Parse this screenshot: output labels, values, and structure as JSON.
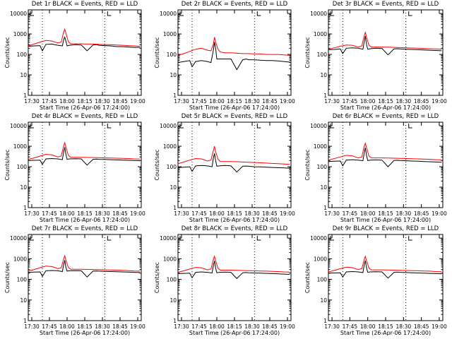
{
  "title_template": "BLACK = Events, RED = LLD",
  "xlabel": "Start Time (26-Apr-06 17:24:00)",
  "ylabel": "Counts/sec",
  "y_ticks": [
    "1",
    "10",
    "100",
    "1000",
    "10000"
  ],
  "x_tick_labels": [
    "17:30",
    "17:45",
    "18:00",
    "18:15",
    "18:30",
    "18:45",
    "19:00"
  ],
  "colors": {
    "events": "#000000",
    "lld": "#ff0000"
  },
  "chart_data": [
    {
      "type": "line",
      "title": "Det 1r",
      "series": [
        {
          "name": "Events",
          "x": [
            0,
            5,
            10,
            12,
            15,
            20,
            25,
            29,
            30,
            31,
            32,
            33,
            35,
            40,
            45,
            50,
            55,
            58,
            60,
            65,
            70,
            75,
            80,
            85,
            90,
            95
          ],
          "y": [
            250,
            260,
            270,
            150,
            310,
            320,
            280,
            260,
            500,
            700,
            450,
            260,
            280,
            300,
            290,
            150,
            290,
            300,
            280,
            270,
            260,
            240,
            240,
            230,
            220,
            220
          ]
        },
        {
          "name": "LLD",
          "x": [
            0,
            5,
            10,
            15,
            20,
            25,
            28,
            30,
            31,
            32,
            34,
            36,
            40,
            45,
            50,
            55,
            60,
            65,
            70,
            75,
            80,
            85,
            90,
            95
          ],
          "y": [
            260,
            320,
            400,
            480,
            450,
            360,
            400,
            1200,
            1700,
            1100,
            420,
            330,
            330,
            330,
            320,
            320,
            310,
            300,
            300,
            290,
            280,
            270,
            260,
            250
          ]
        }
      ],
      "xlim": [
        0,
        96
      ],
      "ylim": [
        1,
        15000
      ],
      "dotted_x": [
        12,
        65
      ],
      "marker_x": 65
    },
    {
      "type": "line",
      "title": "Det 2r",
      "series": [
        {
          "name": "Events",
          "x": [
            0,
            5,
            10,
            12,
            15,
            20,
            25,
            28,
            30,
            31,
            32,
            33,
            35,
            40,
            45,
            50,
            55,
            58,
            60,
            65,
            70,
            75,
            80,
            85,
            90,
            95
          ],
          "y": [
            40,
            45,
            50,
            25,
            45,
            50,
            45,
            40,
            150,
            400,
            200,
            60,
            60,
            60,
            60,
            18,
            55,
            60,
            55,
            55,
            52,
            50,
            50,
            48,
            45,
            42
          ]
        },
        {
          "name": "LLD",
          "x": [
            0,
            5,
            10,
            15,
            20,
            25,
            28,
            30,
            31,
            32,
            34,
            36,
            40,
            45,
            50,
            55,
            60,
            65,
            70,
            75,
            80,
            85,
            90,
            95
          ],
          "y": [
            90,
            110,
            140,
            180,
            200,
            160,
            150,
            300,
            700,
            400,
            180,
            130,
            120,
            120,
            115,
            110,
            110,
            105,
            105,
            100,
            100,
            100,
            95,
            90
          ]
        }
      ],
      "xlim": [
        0,
        96
      ],
      "ylim": [
        1,
        15000
      ],
      "dotted_x": [
        12,
        65
      ],
      "marker_x": 65
    },
    {
      "type": "line",
      "title": "Det 3r",
      "series": [
        {
          "name": "Events",
          "x": [
            0,
            5,
            10,
            12,
            15,
            20,
            25,
            29,
            30,
            31,
            32,
            33,
            35,
            40,
            45,
            50,
            55,
            58,
            60,
            65,
            70,
            75,
            80,
            85,
            90,
            95
          ],
          "y": [
            170,
            175,
            185,
            110,
            200,
            210,
            200,
            180,
            400,
            800,
            300,
            180,
            190,
            200,
            195,
            95,
            185,
            190,
            185,
            180,
            175,
            170,
            165,
            160,
            155,
            150
          ]
        },
        {
          "name": "LLD",
          "x": [
            0,
            5,
            10,
            15,
            20,
            25,
            28,
            30,
            31,
            32,
            34,
            36,
            40,
            45,
            50,
            55,
            60,
            65,
            70,
            75,
            80,
            85,
            90,
            95
          ],
          "y": [
            180,
            210,
            250,
            290,
            280,
            230,
            260,
            800,
            1200,
            700,
            280,
            230,
            230,
            230,
            225,
            220,
            215,
            210,
            205,
            200,
            195,
            190,
            185,
            180
          ]
        }
      ],
      "xlim": [
        0,
        96
      ],
      "ylim": [
        1,
        15000
      ],
      "dotted_x": [
        12,
        65
      ],
      "marker_x": 65
    },
    {
      "type": "line",
      "title": "Det 4r",
      "series": [
        {
          "name": "Events",
          "x": [
            0,
            5,
            10,
            12,
            15,
            20,
            25,
            29,
            30,
            31,
            32,
            33,
            35,
            40,
            45,
            50,
            55,
            58,
            60,
            65,
            70,
            75,
            80,
            85,
            90,
            95
          ],
          "y": [
            200,
            205,
            210,
            130,
            240,
            250,
            240,
            220,
            500,
            900,
            400,
            230,
            240,
            245,
            240,
            120,
            230,
            235,
            230,
            225,
            220,
            215,
            210,
            205,
            200,
            195
          ]
        },
        {
          "name": "LLD",
          "x": [
            0,
            5,
            10,
            15,
            20,
            25,
            28,
            30,
            31,
            32,
            34,
            36,
            40,
            45,
            50,
            55,
            60,
            65,
            70,
            75,
            80,
            85,
            90,
            95
          ],
          "y": [
            230,
            270,
            330,
            400,
            380,
            300,
            330,
            1000,
            1500,
            900,
            360,
            290,
            290,
            290,
            285,
            280,
            275,
            270,
            265,
            260,
            255,
            250,
            240,
            235
          ]
        }
      ],
      "xlim": [
        0,
        96
      ],
      "ylim": [
        1,
        15000
      ],
      "dotted_x": [
        12,
        65
      ],
      "marker_x": 65
    },
    {
      "type": "line",
      "title": "Det 5r",
      "series": [
        {
          "name": "Events",
          "x": [
            0,
            5,
            10,
            12,
            15,
            20,
            25,
            29,
            30,
            31,
            32,
            33,
            35,
            40,
            45,
            50,
            55,
            58,
            60,
            65,
            70,
            75,
            80,
            85,
            90,
            95
          ],
          "y": [
            90,
            95,
            100,
            60,
            110,
            115,
            110,
            100,
            250,
            450,
            200,
            105,
            110,
            115,
            110,
            55,
            105,
            108,
            105,
            100,
            98,
            95,
            92,
            90,
            88,
            85
          ]
        },
        {
          "name": "LLD",
          "x": [
            0,
            5,
            10,
            15,
            20,
            25,
            28,
            30,
            31,
            32,
            34,
            36,
            40,
            45,
            50,
            55,
            60,
            65,
            70,
            75,
            80,
            85,
            90,
            95
          ],
          "y": [
            140,
            170,
            210,
            250,
            240,
            190,
            210,
            600,
            1000,
            550,
            230,
            180,
            180,
            180,
            175,
            170,
            165,
            160,
            155,
            150,
            145,
            140,
            135,
            130
          ]
        }
      ],
      "xlim": [
        0,
        96
      ],
      "ylim": [
        1,
        15000
      ],
      "dotted_x": [
        12,
        65
      ],
      "marker_x": 65
    },
    {
      "type": "line",
      "title": "Det 6r",
      "series": [
        {
          "name": "Events",
          "x": [
            0,
            5,
            10,
            12,
            15,
            20,
            25,
            29,
            30,
            31,
            32,
            33,
            35,
            40,
            45,
            50,
            55,
            58,
            60,
            65,
            70,
            75,
            80,
            85,
            90,
            95
          ],
          "y": [
            180,
            185,
            190,
            110,
            210,
            220,
            210,
            195,
            450,
            850,
            350,
            200,
            210,
            215,
            210,
            100,
            200,
            205,
            200,
            195,
            190,
            185,
            180,
            175,
            170,
            165
          ]
        },
        {
          "name": "LLD",
          "x": [
            0,
            5,
            10,
            15,
            20,
            25,
            28,
            30,
            31,
            32,
            34,
            36,
            40,
            45,
            50,
            55,
            60,
            65,
            70,
            75,
            80,
            85,
            90,
            95
          ],
          "y": [
            210,
            250,
            300,
            360,
            340,
            270,
            300,
            950,
            1400,
            850,
            330,
            270,
            270,
            270,
            265,
            260,
            255,
            250,
            245,
            240,
            235,
            230,
            220,
            215
          ]
        }
      ],
      "xlim": [
        0,
        96
      ],
      "ylim": [
        1,
        15000
      ],
      "dotted_x": [
        12,
        65
      ],
      "marker_x": 65
    },
    {
      "type": "line",
      "title": "Det 7r",
      "series": [
        {
          "name": "Events",
          "x": [
            0,
            5,
            10,
            12,
            15,
            20,
            25,
            29,
            30,
            31,
            32,
            33,
            35,
            40,
            45,
            50,
            55,
            58,
            60,
            65,
            70,
            75,
            80,
            85,
            90,
            95
          ],
          "y": [
            220,
            225,
            230,
            140,
            260,
            270,
            260,
            240,
            500,
            850,
            380,
            250,
            260,
            265,
            260,
            130,
            250,
            255,
            250,
            245,
            240,
            235,
            230,
            225,
            220,
            215
          ]
        },
        {
          "name": "LLD",
          "x": [
            0,
            5,
            10,
            15,
            20,
            25,
            28,
            30,
            31,
            32,
            34,
            36,
            40,
            45,
            50,
            55,
            60,
            65,
            70,
            75,
            80,
            85,
            90,
            95
          ],
          "y": [
            250,
            300,
            370,
            440,
            420,
            330,
            360,
            950,
            1400,
            850,
            380,
            310,
            310,
            310,
            305,
            300,
            295,
            290,
            285,
            280,
            275,
            265,
            255,
            250
          ]
        }
      ],
      "xlim": [
        0,
        96
      ],
      "ylim": [
        1,
        15000
      ],
      "dotted_x": [
        12,
        65
      ],
      "marker_x": 65
    },
    {
      "type": "line",
      "title": "Det 8r",
      "series": [
        {
          "name": "Events",
          "x": [
            0,
            5,
            10,
            12,
            15,
            20,
            25,
            29,
            30,
            31,
            32,
            33,
            35,
            40,
            45,
            50,
            55,
            58,
            60,
            65,
            70,
            75,
            80,
            85,
            90,
            95
          ],
          "y": [
            190,
            195,
            200,
            120,
            220,
            230,
            220,
            205,
            450,
            800,
            350,
            210,
            220,
            225,
            220,
            110,
            210,
            215,
            210,
            205,
            200,
            195,
            190,
            185,
            180,
            175
          ]
        },
        {
          "name": "LLD",
          "x": [
            0,
            5,
            10,
            15,
            20,
            25,
            28,
            30,
            31,
            32,
            34,
            36,
            40,
            45,
            50,
            55,
            60,
            65,
            70,
            75,
            80,
            85,
            90,
            95
          ],
          "y": [
            220,
            260,
            320,
            380,
            360,
            290,
            320,
            900,
            1300,
            800,
            340,
            280,
            280,
            280,
            275,
            270,
            265,
            260,
            255,
            250,
            245,
            240,
            230,
            225
          ]
        }
      ],
      "xlim": [
        0,
        96
      ],
      "ylim": [
        1,
        15000
      ],
      "dotted_x": [
        12,
        65
      ],
      "marker_x": 65
    },
    {
      "type": "line",
      "title": "Det 9r",
      "series": [
        {
          "name": "Events",
          "x": [
            0,
            5,
            10,
            12,
            15,
            20,
            25,
            29,
            30,
            31,
            32,
            33,
            35,
            40,
            45,
            50,
            55,
            58,
            60,
            65,
            70,
            75,
            80,
            85,
            90,
            95
          ],
          "y": [
            200,
            205,
            210,
            130,
            230,
            240,
            230,
            215,
            480,
            820,
            360,
            220,
            230,
            235,
            230,
            115,
            220,
            225,
            220,
            215,
            210,
            205,
            200,
            195,
            190,
            185
          ]
        },
        {
          "name": "LLD",
          "x": [
            0,
            5,
            10,
            15,
            20,
            25,
            28,
            30,
            31,
            32,
            34,
            36,
            40,
            45,
            50,
            55,
            60,
            65,
            70,
            75,
            80,
            85,
            90,
            95
          ],
          "y": [
            230,
            270,
            330,
            390,
            370,
            300,
            330,
            900,
            1300,
            800,
            350,
            290,
            290,
            290,
            285,
            280,
            275,
            270,
            265,
            260,
            255,
            250,
            240,
            235
          ]
        }
      ],
      "xlim": [
        0,
        96
      ],
      "ylim": [
        1,
        15000
      ],
      "dotted_x": [
        12,
        65
      ],
      "marker_x": 65
    }
  ]
}
